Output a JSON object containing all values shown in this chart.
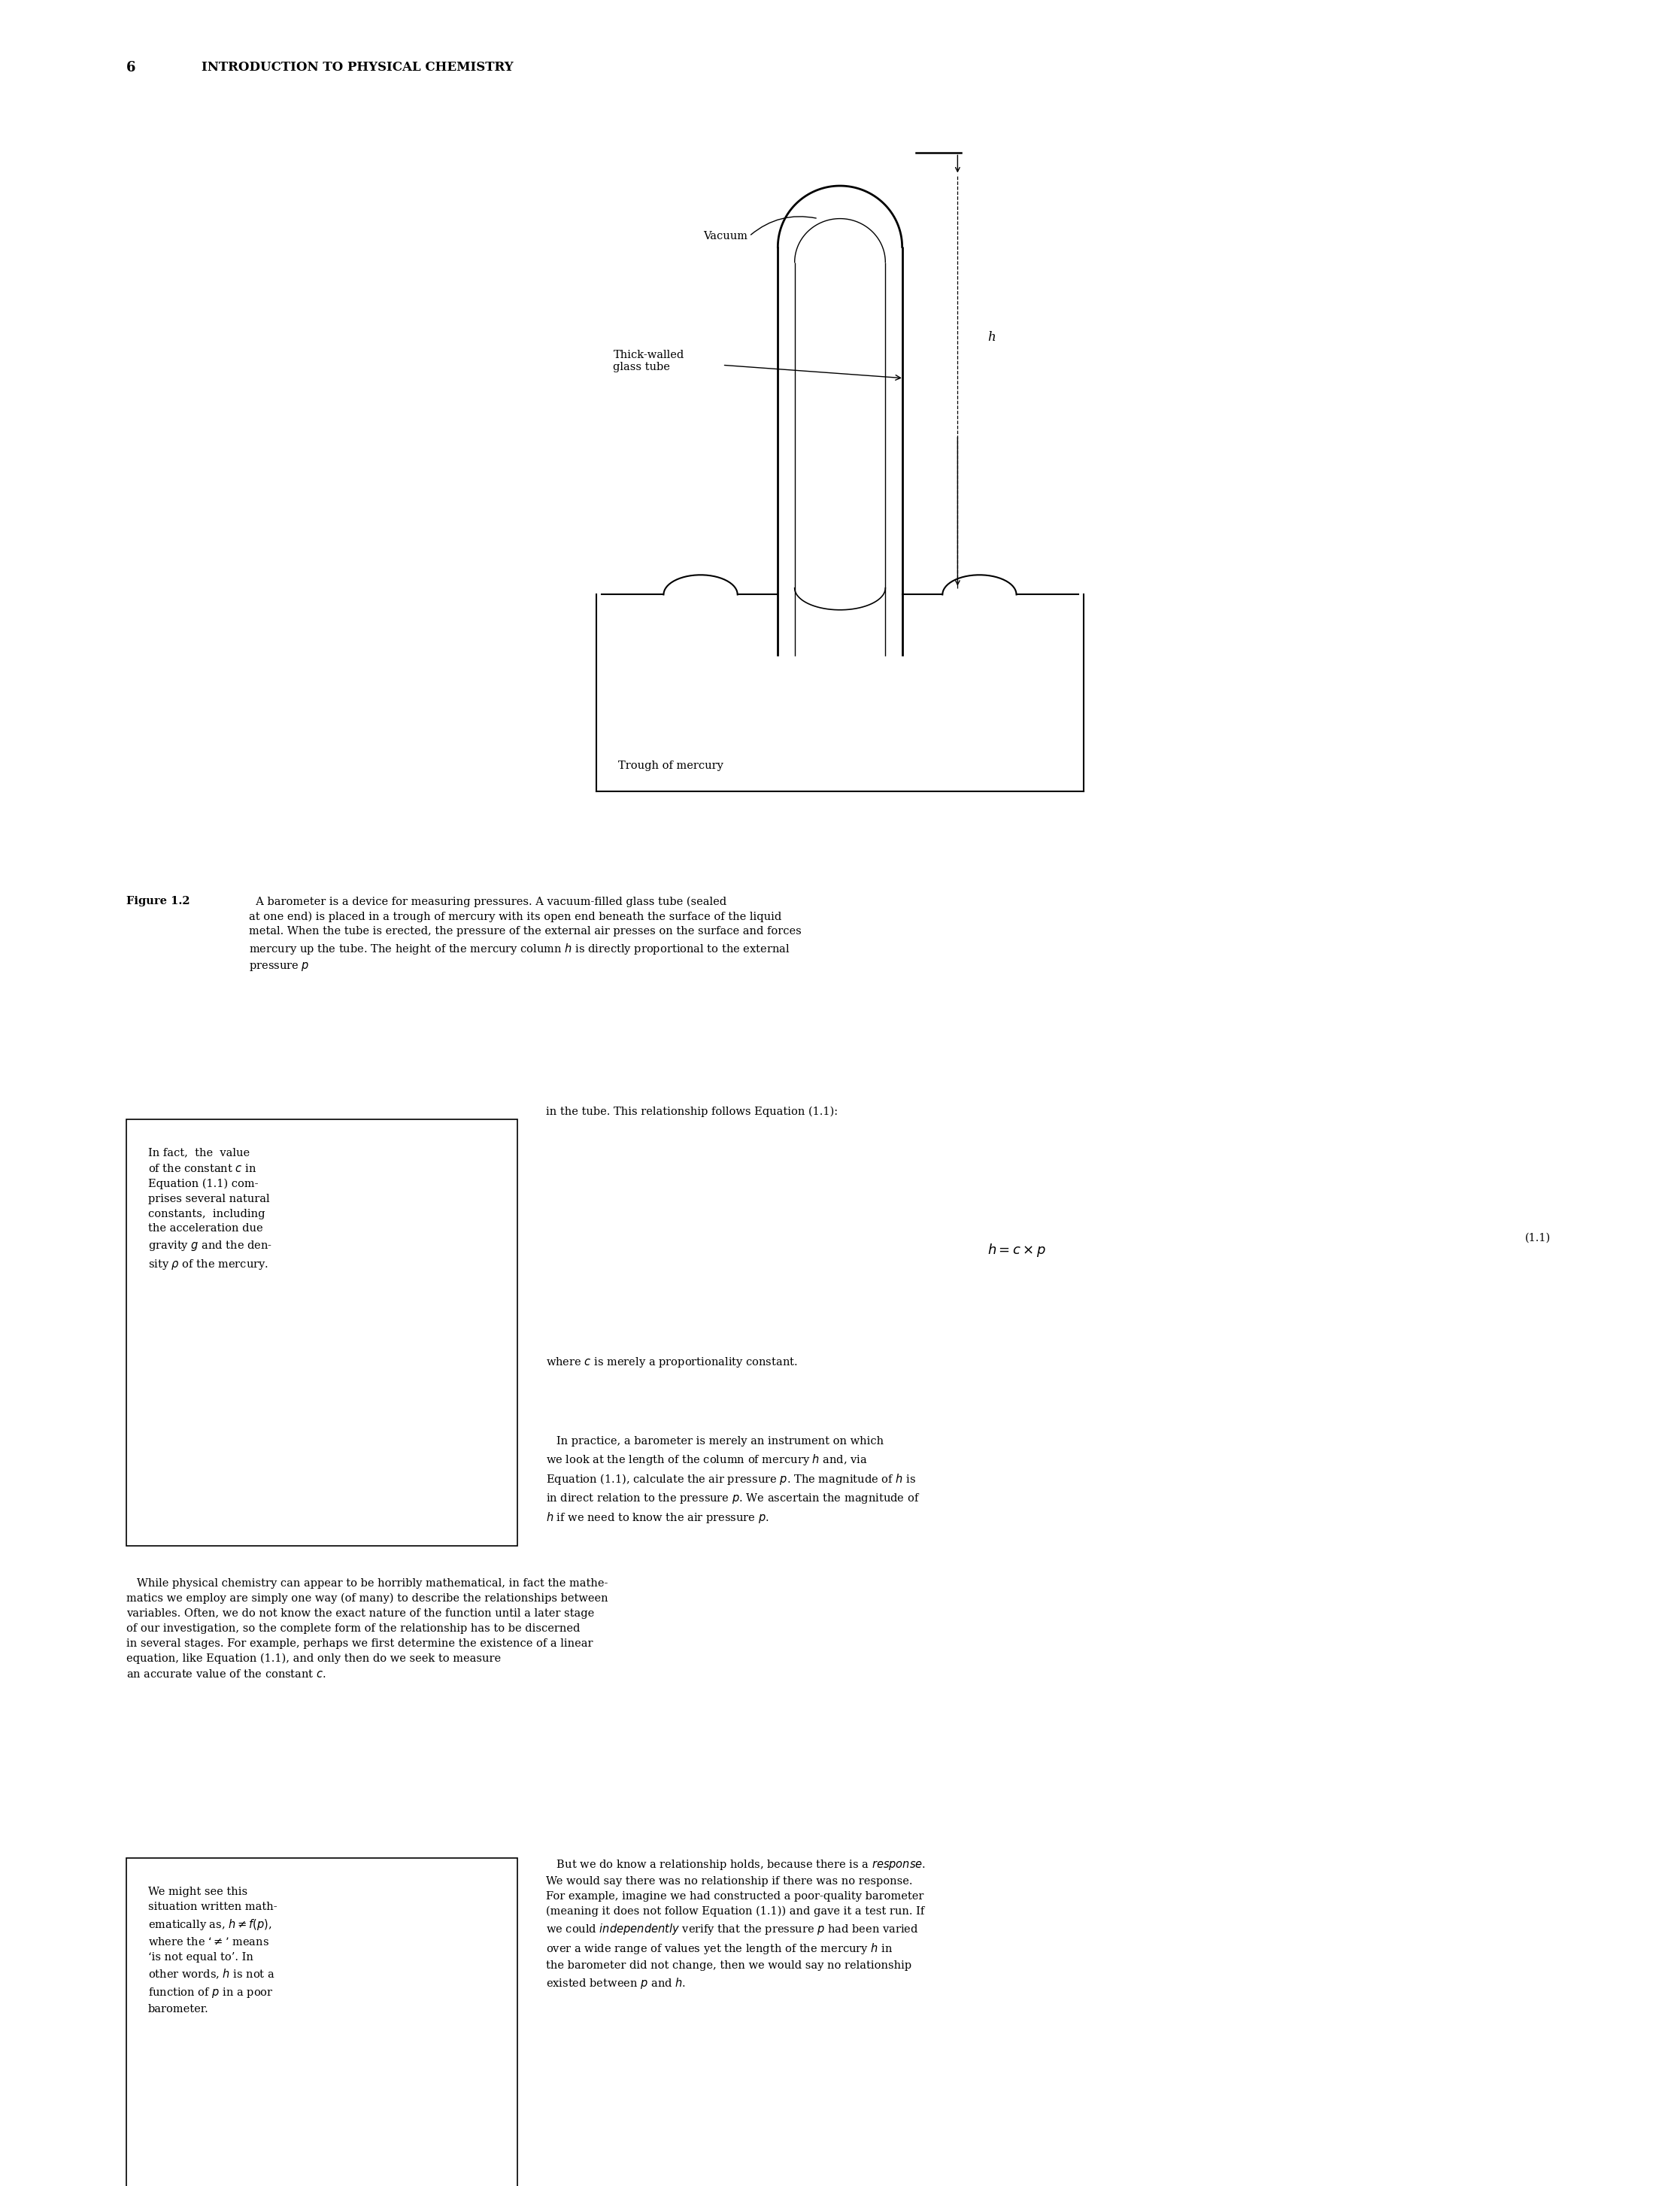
{
  "page_width": 22.34,
  "page_height": 29.06,
  "bg_color": "#ffffff",
  "header_number": "6",
  "header_title": "INTRODUCTION TO PHYSICAL CHEMISTRY",
  "diagram": {
    "vacuum_label": "Vacuum",
    "thick_walled_label": "Thick-walled\nglass tube",
    "h_label": "h",
    "trough_label": "Trough of mercury"
  },
  "figure_caption_bold": "Figure 1.2",
  "figure_caption_rest": "  A barometer is a device for measuring pressures. A vacuum-filled glass tube (sealed\nat one end) is placed in a trough of mercury with its open end beneath the surface of the liquid\nmetal. When the tube is erected, the pressure of the external air presses on the surface and forces\nmercury up the tube. The height of the mercury column $h$ is directly proportional to the external\npressure $p$",
  "sidebar1_lines": [
    "In fact,  the  value",
    "of the constant $c$ in",
    "Equation (1.1) com-",
    "prises several natural",
    "constants,  including",
    "the acceleration due",
    "gravity $g$ and the den-",
    "sity $\\rho$ of the mercury."
  ],
  "sidebar2_lines": [
    "We might see this",
    "situation written math-",
    "ematically as, $h \\neq f(p)$,",
    "where the ‘$\\neq$’ means",
    "‘is not equal to’. In",
    "other words, $h$ is not a",
    "function of $p$ in a poor",
    "barometer."
  ],
  "main_text_1": "in the tube. This relationship follows Equation (1.1):",
  "equation_1": "$h = c \\times p$",
  "equation_number_1": "(1.1)",
  "main_text_2": "where $c$ is merely a proportionality constant.",
  "main_text_3_lines": [
    "   In practice, a barometer is merely an instrument on which",
    "we look at the length of the column of mercury $h$ and, via",
    "Equation (1.1), calculate the air pressure $p$. The magnitude of $h$ is",
    "in direct relation to the pressure $p$. We ascertain the magnitude of",
    "$h$ if we need to know the air pressure $p$."
  ],
  "main_text_4_lines": [
    "   While physical chemistry can appear to be horribly mathematical, in fact the mathe-",
    "matics we employ are simply one way (of many) to describe the relationships between",
    "variables. Often, we do not know the exact nature of the function until a later stage",
    "of our investigation, so the complete form of the relationship has to be discerned",
    "in several stages. For example, perhaps we first determine the existence of a linear",
    "equation, like Equation (1.1), and only then do we seek to measure",
    "an accurate value of the constant $c$."
  ],
  "main_text_5_lines": [
    "   But we do know a relationship holds, because there is a $\\it{response}$.",
    "We would say there was no relationship if there was no response.",
    "For example, imagine we had constructed a poor-quality barometer",
    "(meaning it does not follow Equation (1.1)) and gave it a test run. If",
    "we could $\\it{independently}$ verify that the pressure $p$ had been varied",
    "over a wide range of values yet the length of the mercury $h$ in",
    "the barometer did not change, then we would say no relationship",
    "existed between $p$ and $h$."
  ]
}
